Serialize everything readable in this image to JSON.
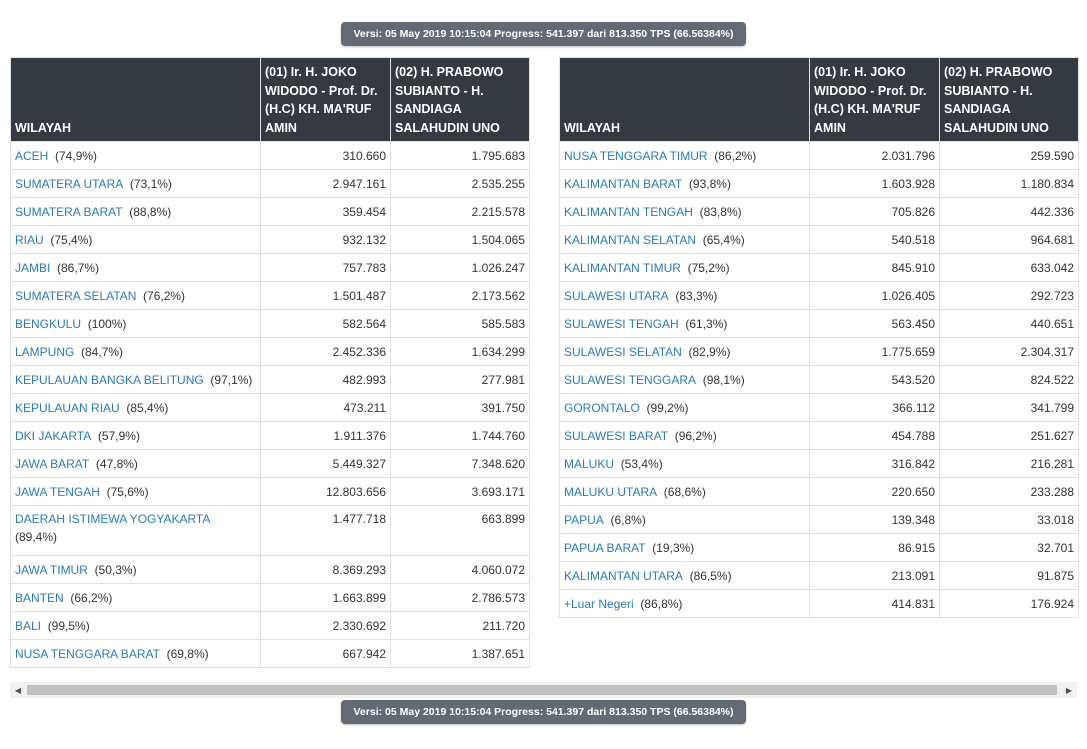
{
  "version_text": "Versi: 05 May 2019 10:15:04 Progress: 541.397 dari 813.350 TPS (66.56384%)",
  "headers": {
    "wilayah": "WILAYAH",
    "cand1": "(01) Ir. H. JOKO WIDODO - Prof. Dr. (H.C) KH. MA'RUF AMIN",
    "cand2": "(02) H. PRABOWO SUBIANTO - H. SANDIAGA SALAHUDIN UNO"
  },
  "left_rows": [
    {
      "name": "ACEH",
      "pct": "(74,9%)",
      "v1": "310.660",
      "v2": "1.795.683"
    },
    {
      "name": "SUMATERA UTARA",
      "pct": "(73,1%)",
      "v1": "2.947.161",
      "v2": "2.535.255"
    },
    {
      "name": "SUMATERA BARAT",
      "pct": "(88,8%)",
      "v1": "359.454",
      "v2": "2.215.578"
    },
    {
      "name": "RIAU",
      "pct": "(75,4%)",
      "v1": "932.132",
      "v2": "1.504.065"
    },
    {
      "name": "JAMBI",
      "pct": "(86,7%)",
      "v1": "757.783",
      "v2": "1.026.247"
    },
    {
      "name": "SUMATERA SELATAN",
      "pct": "(76,2%)",
      "v1": "1.501.487",
      "v2": "2.173.562"
    },
    {
      "name": "BENGKULU",
      "pct": "(100%)",
      "v1": "582.564",
      "v2": "585.583"
    },
    {
      "name": "LAMPUNG",
      "pct": "(84,7%)",
      "v1": "2.452.336",
      "v2": "1.634.299"
    },
    {
      "name": "KEPULAUAN BANGKA BELITUNG",
      "pct": "(97,1%)",
      "v1": "482.993",
      "v2": "277.981"
    },
    {
      "name": "KEPULAUAN RIAU",
      "pct": "(85,4%)",
      "v1": "473.211",
      "v2": "391.750"
    },
    {
      "name": "DKI JAKARTA",
      "pct": "(57,9%)",
      "v1": "1.911.376",
      "v2": "1.744.760"
    },
    {
      "name": "JAWA BARAT",
      "pct": "(47,8%)",
      "v1": "5.449.327",
      "v2": "7.348.620"
    },
    {
      "name": "JAWA TENGAH",
      "pct": "(75,6%)",
      "v1": "12.803.656",
      "v2": "3.693.171"
    },
    {
      "name": "DAERAH ISTIMEWA YOGYAKARTA",
      "pct": "(89,4%)",
      "v1": "1.477.718",
      "v2": "663.899"
    },
    {
      "name": "JAWA TIMUR",
      "pct": "(50,3%)",
      "v1": "8.369.293",
      "v2": "4.060.072"
    },
    {
      "name": "BANTEN",
      "pct": "(66,2%)",
      "v1": "1.663.899",
      "v2": "2.786.573"
    },
    {
      "name": "BALI",
      "pct": "(99,5%)",
      "v1": "2.330.692",
      "v2": "211.720"
    },
    {
      "name": "NUSA TENGGARA BARAT",
      "pct": "(69,8%)",
      "v1": "667.942",
      "v2": "1.387.651"
    }
  ],
  "right_rows": [
    {
      "name": "NUSA TENGGARA TIMUR",
      "pct": "(86,2%)",
      "v1": "2.031.796",
      "v2": "259.590"
    },
    {
      "name": "KALIMANTAN BARAT",
      "pct": "(93,8%)",
      "v1": "1.603.928",
      "v2": "1.180.834"
    },
    {
      "name": "KALIMANTAN TENGAH",
      "pct": "(83,8%)",
      "v1": "705.826",
      "v2": "442.336"
    },
    {
      "name": "KALIMANTAN SELATAN",
      "pct": "(65,4%)",
      "v1": "540.518",
      "v2": "964.681"
    },
    {
      "name": "KALIMANTAN TIMUR",
      "pct": "(75,2%)",
      "v1": "845.910",
      "v2": "633.042"
    },
    {
      "name": "SULAWESI UTARA",
      "pct": "(83,3%)",
      "v1": "1.026.405",
      "v2": "292.723"
    },
    {
      "name": "SULAWESI TENGAH",
      "pct": "(61,3%)",
      "v1": "563.450",
      "v2": "440.651"
    },
    {
      "name": "SULAWESI SELATAN",
      "pct": "(82,9%)",
      "v1": "1.775.659",
      "v2": "2.304.317"
    },
    {
      "name": "SULAWESI TENGGARA",
      "pct": "(98,1%)",
      "v1": "543.520",
      "v2": "824.522"
    },
    {
      "name": "GORONTALO",
      "pct": "(99,2%)",
      "v1": "366.112",
      "v2": "341.799"
    },
    {
      "name": "SULAWESI BARAT",
      "pct": "(96,2%)",
      "v1": "454.788",
      "v2": "251.627"
    },
    {
      "name": "MALUKU",
      "pct": "(53,4%)",
      "v1": "316.842",
      "v2": "216.281"
    },
    {
      "name": "MALUKU UTARA",
      "pct": "(68,6%)",
      "v1": "220.650",
      "v2": "233.288"
    },
    {
      "name": "PAPUA",
      "pct": "(6,8%)",
      "v1": "139.348",
      "v2": "33.018"
    },
    {
      "name": "PAPUA BARAT",
      "pct": "(19,3%)",
      "v1": "86.915",
      "v2": "32.701"
    },
    {
      "name": "KALIMANTAN UTARA",
      "pct": "(86,5%)",
      "v1": "213.091",
      "v2": "91.875"
    },
    {
      "name": "+Luar Negeri",
      "pct": "(86,8%)",
      "v1": "414.831",
      "v2": "176.924"
    }
  ],
  "scrollbar": {
    "left_icon": "triangle-left-icon",
    "right_icon": "triangle-right-icon"
  }
}
